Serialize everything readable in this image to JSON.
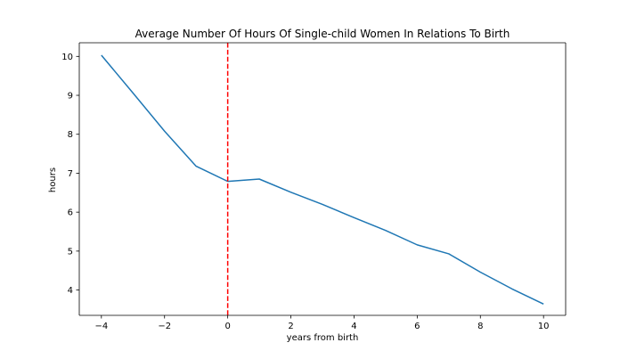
{
  "chart_data": {
    "type": "line",
    "title": "Average Number Of Hours Of Single-child Women In Relations To Birth",
    "xlabel": "years from birth",
    "ylabel": "hours",
    "xlim": [
      -4.7,
      10.7
    ],
    "ylim": [
      3.35,
      10.35
    ],
    "xticks": [
      -4,
      -2,
      0,
      2,
      4,
      6,
      8,
      10
    ],
    "xtick_labels": [
      "−4",
      "−2",
      "0",
      "2",
      "4",
      "6",
      "8",
      "10"
    ],
    "yticks": [
      4,
      5,
      6,
      7,
      8,
      9,
      10
    ],
    "ytick_labels": [
      "4",
      "5",
      "6",
      "7",
      "8",
      "9",
      "10"
    ],
    "grid": false,
    "series": [
      {
        "color": "#1f77b4",
        "x": [
          -4,
          -3,
          -2,
          -1,
          0,
          1,
          2,
          3,
          4,
          5,
          6,
          7,
          8,
          9,
          10
        ],
        "y": [
          10.03,
          9.06,
          8.08,
          7.18,
          6.79,
          6.85,
          6.51,
          6.2,
          5.86,
          5.53,
          5.16,
          4.93,
          4.46,
          4.03,
          3.64
        ]
      }
    ],
    "reference_line": {
      "x": 0,
      "color": "#ff0000",
      "style": "dashed"
    }
  }
}
